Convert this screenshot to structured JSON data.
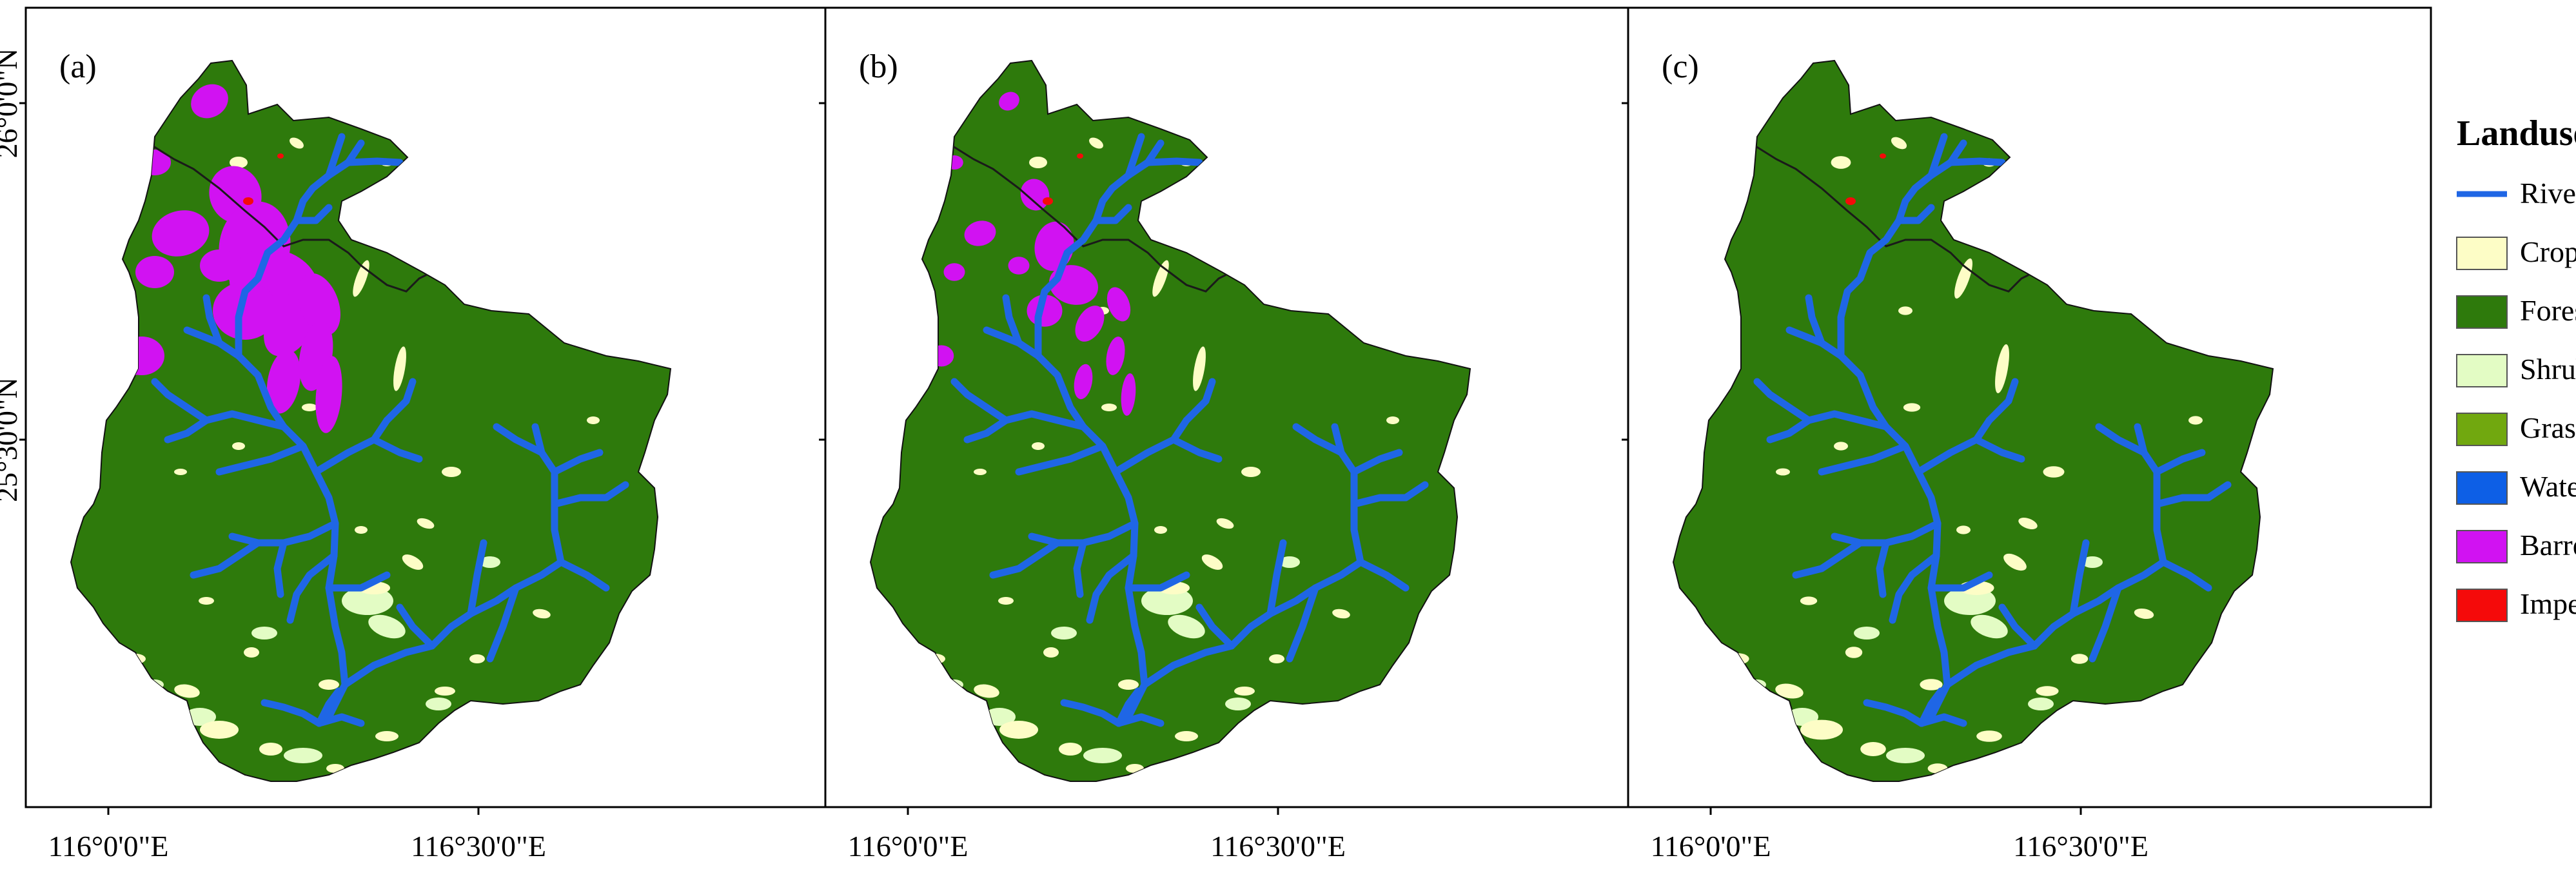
{
  "panels": [
    {
      "label": "(a)",
      "barren_level": 1.0,
      "crop_level": 1.0
    },
    {
      "label": "(b)",
      "barren_level": 0.55,
      "crop_level": 1.0
    },
    {
      "label": "(c)",
      "barren_level": 0.0,
      "crop_level": 1.1
    }
  ],
  "axes": {
    "x_ticks": [
      "116°0'0\"E",
      "116°30'0\"E"
    ],
    "y_ticks": [
      "26°0'0\"N",
      "25°30'0\"N"
    ]
  },
  "legend": {
    "title": "Landuse",
    "items": [
      {
        "label": "River",
        "kind": "line",
        "color": "#1f66e5"
      },
      {
        "label": "Cropland",
        "kind": "box",
        "color": "#fdfdc6"
      },
      {
        "label": "Forest",
        "kind": "box",
        "color": "#2e7a0c"
      },
      {
        "label": "Shrub",
        "kind": "box",
        "color": "#e3fcc4"
      },
      {
        "label": "Grassland",
        "kind": "box",
        "color": "#71a80f"
      },
      {
        "label": "Water",
        "kind": "box",
        "color": "#0d5fe6"
      },
      {
        "label": "Barren",
        "kind": "box",
        "color": "#d112f2"
      },
      {
        "label": "Impervious",
        "kind": "box",
        "color": "#f50a0a"
      }
    ]
  },
  "colors": {
    "forest": "#2e7a0c",
    "river": "#1f66e5",
    "cropland": "#fdfdc6",
    "shrub": "#e3fcc4",
    "barren": "#d112f2",
    "impervious": "#f50a0a"
  }
}
